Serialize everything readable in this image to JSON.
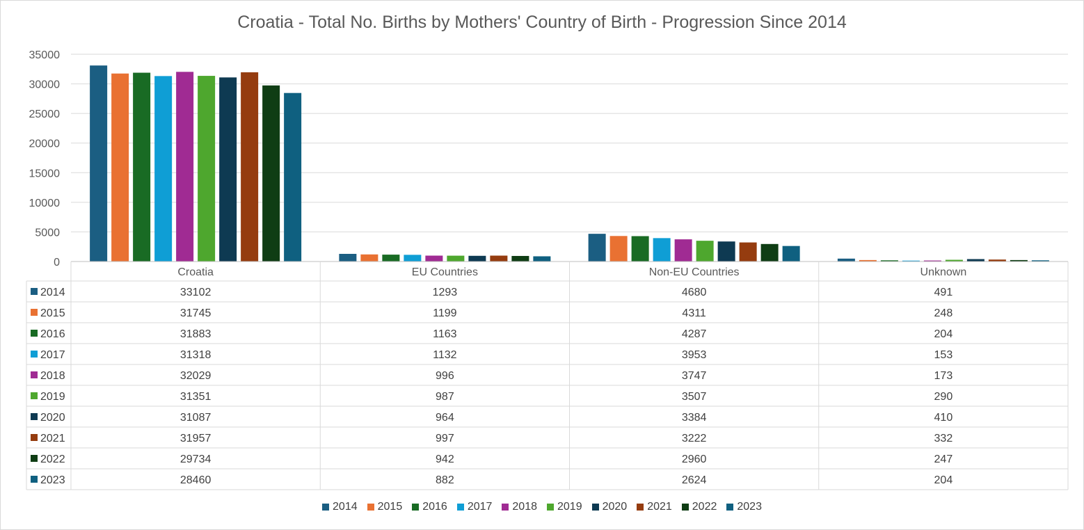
{
  "chart_data": {
    "type": "bar",
    "title": "Croatia - Total No. Births by Mothers' Country of Birth - Progression Since 2014",
    "xlabel": "",
    "ylabel": "",
    "ylim": [
      0,
      35000
    ],
    "yticks": [
      0,
      5000,
      10000,
      15000,
      20000,
      25000,
      30000,
      35000
    ],
    "grid": true,
    "legend_position": "bottom",
    "categories": [
      "Croatia",
      "EU Countries",
      "Non-EU Countries",
      "Unknown"
    ],
    "series": [
      {
        "name": "2014",
        "color": "#1b5e82",
        "values": [
          33102,
          1293,
          4680,
          491
        ]
      },
      {
        "name": "2015",
        "color": "#e97132",
        "values": [
          31745,
          1199,
          4311,
          248
        ]
      },
      {
        "name": "2016",
        "color": "#196b24",
        "values": [
          31883,
          1163,
          4287,
          204
        ]
      },
      {
        "name": "2017",
        "color": "#0f9ed5",
        "values": [
          31318,
          1132,
          3953,
          153
        ]
      },
      {
        "name": "2018",
        "color": "#a02b93",
        "values": [
          32029,
          996,
          3747,
          173
        ]
      },
      {
        "name": "2019",
        "color": "#4ea72e",
        "values": [
          31351,
          987,
          3507,
          290
        ]
      },
      {
        "name": "2020",
        "color": "#0e3a52",
        "values": [
          31087,
          964,
          3384,
          410
        ]
      },
      {
        "name": "2021",
        "color": "#953c0f",
        "values": [
          31957,
          997,
          3222,
          332
        ]
      },
      {
        "name": "2022",
        "color": "#0f3d14",
        "values": [
          29734,
          942,
          2960,
          247
        ]
      },
      {
        "name": "2023",
        "color": "#0f6080",
        "values": [
          28460,
          882,
          2624,
          204
        ]
      }
    ],
    "data_table": true
  }
}
